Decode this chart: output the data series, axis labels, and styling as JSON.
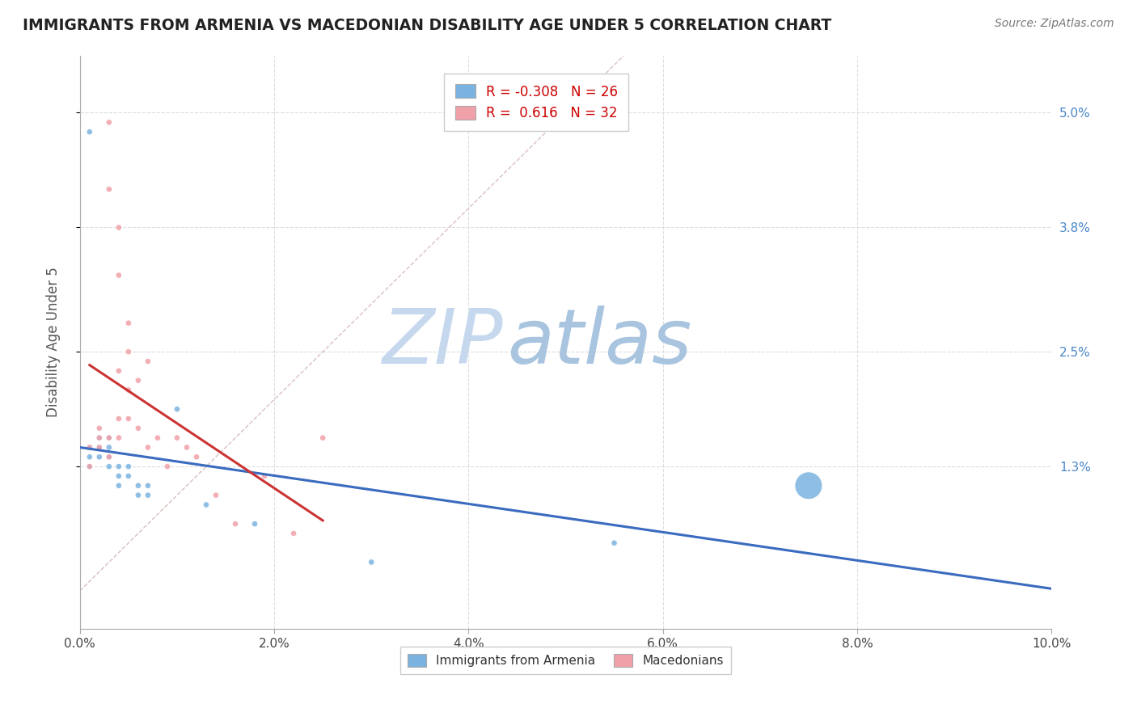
{
  "title": "IMMIGRANTS FROM ARMENIA VS MACEDONIAN DISABILITY AGE UNDER 5 CORRELATION CHART",
  "source": "Source: ZipAtlas.com",
  "ylabel": "Disability Age Under 5",
  "ytick_labels": [
    "1.3%",
    "2.5%",
    "3.8%",
    "5.0%"
  ],
  "ytick_values": [
    0.013,
    0.025,
    0.038,
    0.05
  ],
  "xtick_vals": [
    0.0,
    0.02,
    0.04,
    0.06,
    0.08,
    0.1
  ],
  "xmin": 0.0,
  "xmax": 0.1,
  "ymin": -0.004,
  "ymax": 0.056,
  "legend_armenia": "Immigrants from Armenia",
  "legend_macedonian": "Macedonians",
  "R_armenia": "-0.308",
  "N_armenia": "26",
  "R_macedonian": "0.616",
  "N_macedonian": "32",
  "color_armenia": "#7ab3e0",
  "color_macedonian": "#f0a0a8",
  "color_armenia_line": "#3a6bbf",
  "color_macedonian_line": "#cc3333",
  "color_diagonal": "#d0b0b0",
  "watermark_zip": "#c8d4e8",
  "watermark_atlas": "#a0b8d0",
  "background_color": "#ffffff",
  "grid_color": "#dddddd",
  "armenia_x": [
    0.001,
    0.001,
    0.001,
    0.001,
    0.002,
    0.002,
    0.002,
    0.003,
    0.003,
    0.003,
    0.003,
    0.004,
    0.004,
    0.004,
    0.005,
    0.005,
    0.006,
    0.006,
    0.007,
    0.007,
    0.01,
    0.013,
    0.018,
    0.03,
    0.055,
    0.075
  ],
  "armenia_y": [
    0.048,
    0.015,
    0.014,
    0.013,
    0.016,
    0.015,
    0.014,
    0.016,
    0.015,
    0.014,
    0.013,
    0.013,
    0.012,
    0.011,
    0.013,
    0.012,
    0.011,
    0.01,
    0.011,
    0.01,
    0.019,
    0.009,
    0.007,
    0.003,
    0.005,
    0.011
  ],
  "armenia_sizes": [
    30,
    30,
    30,
    30,
    30,
    30,
    30,
    30,
    30,
    30,
    30,
    30,
    30,
    30,
    30,
    30,
    30,
    30,
    30,
    30,
    30,
    30,
    30,
    30,
    30,
    600
  ],
  "macedonian_x": [
    0.001,
    0.001,
    0.002,
    0.002,
    0.002,
    0.003,
    0.003,
    0.003,
    0.003,
    0.004,
    0.004,
    0.004,
    0.004,
    0.004,
    0.005,
    0.005,
    0.005,
    0.005,
    0.006,
    0.006,
    0.007,
    0.007,
    0.008,
    0.009,
    0.01,
    0.011,
    0.012,
    0.014,
    0.016,
    0.019,
    0.022,
    0.025
  ],
  "macedonian_y": [
    0.015,
    0.013,
    0.017,
    0.016,
    0.015,
    0.049,
    0.042,
    0.016,
    0.014,
    0.038,
    0.033,
    0.023,
    0.018,
    0.016,
    0.028,
    0.025,
    0.021,
    0.018,
    0.022,
    0.017,
    0.024,
    0.015,
    0.016,
    0.013,
    0.016,
    0.015,
    0.014,
    0.01,
    0.007,
    0.012,
    0.006,
    0.016
  ],
  "macedonian_sizes": [
    30,
    30,
    30,
    30,
    30,
    30,
    30,
    30,
    30,
    30,
    30,
    30,
    30,
    30,
    30,
    30,
    30,
    30,
    30,
    30,
    30,
    30,
    30,
    30,
    30,
    30,
    30,
    30,
    30,
    30,
    30,
    30
  ]
}
